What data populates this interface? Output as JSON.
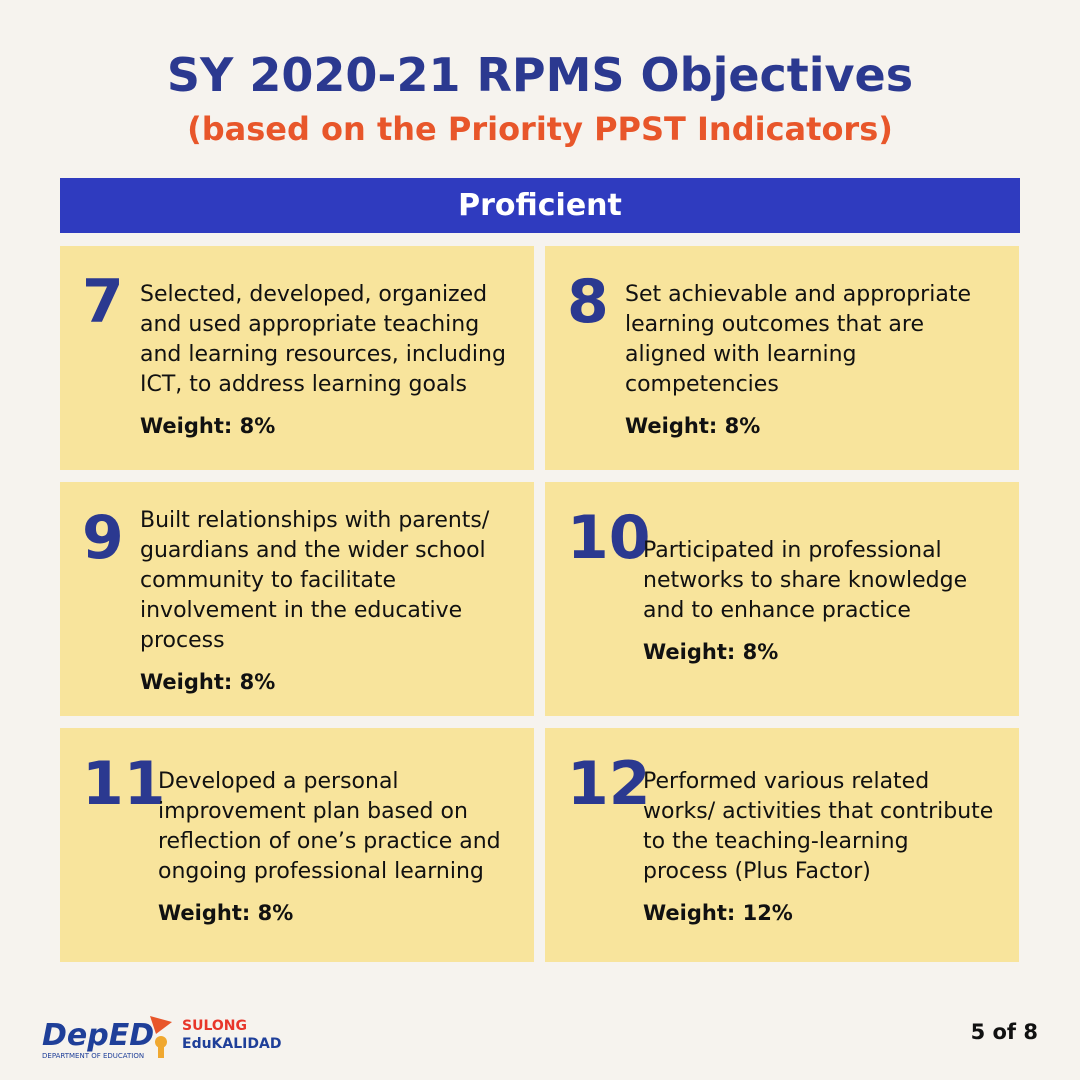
{
  "header": {
    "title": "SY 2020-21 RPMS Objectives",
    "subtitle": "(based on the Priority PPST Indicators)"
  },
  "section_title": "Proficient",
  "cards": [
    {
      "number": "7",
      "text": "Selected, developed, organized and used appropriate teaching and learning resources, including ICT, to address learning goals",
      "weight": "Weight: 8%"
    },
    {
      "number": "8",
      "text": "Set achievable and appropriate learning outcomes that are aligned with learning competencies",
      "weight": "Weight: 8%"
    },
    {
      "number": "9",
      "text": "Built relationships with parents/ guardians and the wider school community to facilitate involvement in the educative process",
      "weight": "Weight: 8%"
    },
    {
      "number": "10",
      "text": "Participated in professional networks to share knowledge and to enhance practice",
      "weight": "Weight: 8%"
    },
    {
      "number": "11",
      "text": "Developed a personal improvement plan based on reflection of one’s practice and ongoing professional learning",
      "weight": "Weight: 8%"
    },
    {
      "number": "12",
      "text": "Performed various related works/ activities that contribute to the teaching-learning process (Plus Factor)",
      "weight": "Weight: 12%"
    }
  ],
  "footer": {
    "logo_deped": "DepED",
    "logo_deped_sub": "DEPARTMENT OF EDUCATION",
    "logo_sulong": "SULONG",
    "logo_edukalidad": "EduKALIDAD",
    "page": "5 of 8"
  }
}
